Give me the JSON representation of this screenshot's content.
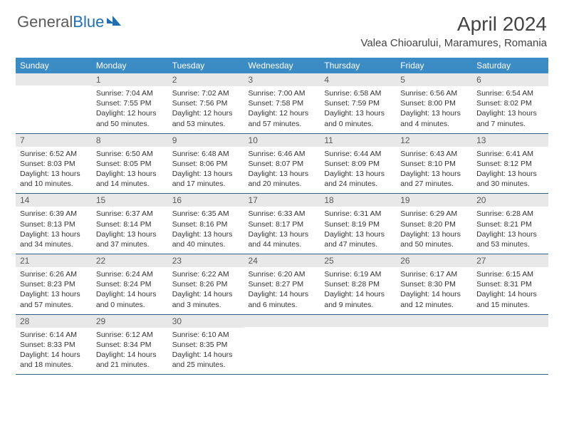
{
  "logo": {
    "text1": "General",
    "text2": "Blue"
  },
  "title": "April 2024",
  "location": "Valea Chioarului, Maramures, Romania",
  "colors": {
    "header_bg": "#3b8bc4",
    "daynum_bg": "#e8e8e8",
    "rule": "#2e5f85"
  },
  "day_headers": [
    "Sunday",
    "Monday",
    "Tuesday",
    "Wednesday",
    "Thursday",
    "Friday",
    "Saturday"
  ],
  "weeks": [
    [
      {
        "n": "",
        "sr": "",
        "ss": "",
        "dl": ""
      },
      {
        "n": "1",
        "sr": "Sunrise: 7:04 AM",
        "ss": "Sunset: 7:55 PM",
        "dl": "Daylight: 12 hours and 50 minutes."
      },
      {
        "n": "2",
        "sr": "Sunrise: 7:02 AM",
        "ss": "Sunset: 7:56 PM",
        "dl": "Daylight: 12 hours and 53 minutes."
      },
      {
        "n": "3",
        "sr": "Sunrise: 7:00 AM",
        "ss": "Sunset: 7:58 PM",
        "dl": "Daylight: 12 hours and 57 minutes."
      },
      {
        "n": "4",
        "sr": "Sunrise: 6:58 AM",
        "ss": "Sunset: 7:59 PM",
        "dl": "Daylight: 13 hours and 0 minutes."
      },
      {
        "n": "5",
        "sr": "Sunrise: 6:56 AM",
        "ss": "Sunset: 8:00 PM",
        "dl": "Daylight: 13 hours and 4 minutes."
      },
      {
        "n": "6",
        "sr": "Sunrise: 6:54 AM",
        "ss": "Sunset: 8:02 PM",
        "dl": "Daylight: 13 hours and 7 minutes."
      }
    ],
    [
      {
        "n": "7",
        "sr": "Sunrise: 6:52 AM",
        "ss": "Sunset: 8:03 PM",
        "dl": "Daylight: 13 hours and 10 minutes."
      },
      {
        "n": "8",
        "sr": "Sunrise: 6:50 AM",
        "ss": "Sunset: 8:05 PM",
        "dl": "Daylight: 13 hours and 14 minutes."
      },
      {
        "n": "9",
        "sr": "Sunrise: 6:48 AM",
        "ss": "Sunset: 8:06 PM",
        "dl": "Daylight: 13 hours and 17 minutes."
      },
      {
        "n": "10",
        "sr": "Sunrise: 6:46 AM",
        "ss": "Sunset: 8:07 PM",
        "dl": "Daylight: 13 hours and 20 minutes."
      },
      {
        "n": "11",
        "sr": "Sunrise: 6:44 AM",
        "ss": "Sunset: 8:09 PM",
        "dl": "Daylight: 13 hours and 24 minutes."
      },
      {
        "n": "12",
        "sr": "Sunrise: 6:43 AM",
        "ss": "Sunset: 8:10 PM",
        "dl": "Daylight: 13 hours and 27 minutes."
      },
      {
        "n": "13",
        "sr": "Sunrise: 6:41 AM",
        "ss": "Sunset: 8:12 PM",
        "dl": "Daylight: 13 hours and 30 minutes."
      }
    ],
    [
      {
        "n": "14",
        "sr": "Sunrise: 6:39 AM",
        "ss": "Sunset: 8:13 PM",
        "dl": "Daylight: 13 hours and 34 minutes."
      },
      {
        "n": "15",
        "sr": "Sunrise: 6:37 AM",
        "ss": "Sunset: 8:14 PM",
        "dl": "Daylight: 13 hours and 37 minutes."
      },
      {
        "n": "16",
        "sr": "Sunrise: 6:35 AM",
        "ss": "Sunset: 8:16 PM",
        "dl": "Daylight: 13 hours and 40 minutes."
      },
      {
        "n": "17",
        "sr": "Sunrise: 6:33 AM",
        "ss": "Sunset: 8:17 PM",
        "dl": "Daylight: 13 hours and 44 minutes."
      },
      {
        "n": "18",
        "sr": "Sunrise: 6:31 AM",
        "ss": "Sunset: 8:19 PM",
        "dl": "Daylight: 13 hours and 47 minutes."
      },
      {
        "n": "19",
        "sr": "Sunrise: 6:29 AM",
        "ss": "Sunset: 8:20 PM",
        "dl": "Daylight: 13 hours and 50 minutes."
      },
      {
        "n": "20",
        "sr": "Sunrise: 6:28 AM",
        "ss": "Sunset: 8:21 PM",
        "dl": "Daylight: 13 hours and 53 minutes."
      }
    ],
    [
      {
        "n": "21",
        "sr": "Sunrise: 6:26 AM",
        "ss": "Sunset: 8:23 PM",
        "dl": "Daylight: 13 hours and 57 minutes."
      },
      {
        "n": "22",
        "sr": "Sunrise: 6:24 AM",
        "ss": "Sunset: 8:24 PM",
        "dl": "Daylight: 14 hours and 0 minutes."
      },
      {
        "n": "23",
        "sr": "Sunrise: 6:22 AM",
        "ss": "Sunset: 8:26 PM",
        "dl": "Daylight: 14 hours and 3 minutes."
      },
      {
        "n": "24",
        "sr": "Sunrise: 6:20 AM",
        "ss": "Sunset: 8:27 PM",
        "dl": "Daylight: 14 hours and 6 minutes."
      },
      {
        "n": "25",
        "sr": "Sunrise: 6:19 AM",
        "ss": "Sunset: 8:28 PM",
        "dl": "Daylight: 14 hours and 9 minutes."
      },
      {
        "n": "26",
        "sr": "Sunrise: 6:17 AM",
        "ss": "Sunset: 8:30 PM",
        "dl": "Daylight: 14 hours and 12 minutes."
      },
      {
        "n": "27",
        "sr": "Sunrise: 6:15 AM",
        "ss": "Sunset: 8:31 PM",
        "dl": "Daylight: 14 hours and 15 minutes."
      }
    ],
    [
      {
        "n": "28",
        "sr": "Sunrise: 6:14 AM",
        "ss": "Sunset: 8:33 PM",
        "dl": "Daylight: 14 hours and 18 minutes."
      },
      {
        "n": "29",
        "sr": "Sunrise: 6:12 AM",
        "ss": "Sunset: 8:34 PM",
        "dl": "Daylight: 14 hours and 21 minutes."
      },
      {
        "n": "30",
        "sr": "Sunrise: 6:10 AM",
        "ss": "Sunset: 8:35 PM",
        "dl": "Daylight: 14 hours and 25 minutes."
      },
      {
        "n": "",
        "sr": "",
        "ss": "",
        "dl": ""
      },
      {
        "n": "",
        "sr": "",
        "ss": "",
        "dl": ""
      },
      {
        "n": "",
        "sr": "",
        "ss": "",
        "dl": ""
      },
      {
        "n": "",
        "sr": "",
        "ss": "",
        "dl": ""
      }
    ]
  ]
}
